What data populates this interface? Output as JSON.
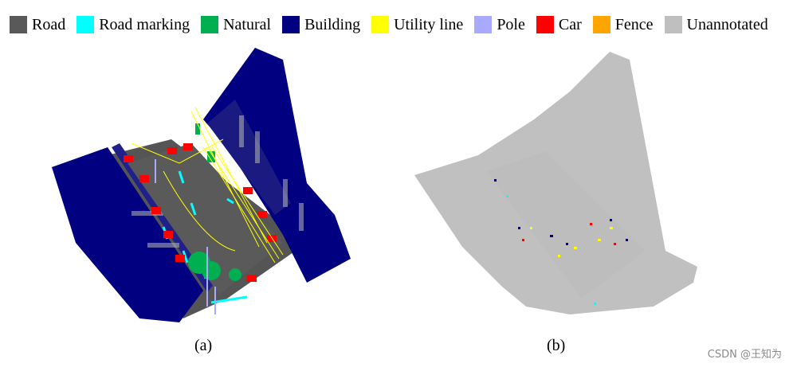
{
  "legend": [
    {
      "label": "Road",
      "color": "#595959"
    },
    {
      "label": "Road marking",
      "color": "#00FFFF"
    },
    {
      "label": "Natural",
      "color": "#00B050"
    },
    {
      "label": "Building",
      "color": "#000080"
    },
    {
      "label": "Utility line",
      "color": "#FFFF00"
    },
    {
      "label": "Pole",
      "color": "#A9A9FF"
    },
    {
      "label": "Car",
      "color": "#FF0000"
    },
    {
      "label": "Fence",
      "color": "#FFA500"
    },
    {
      "label": "Unannotated",
      "color": "#BFBFBF"
    }
  ],
  "captions": {
    "a": "(a)",
    "b": "(b)"
  },
  "watermark": "CSDN @王知为"
}
